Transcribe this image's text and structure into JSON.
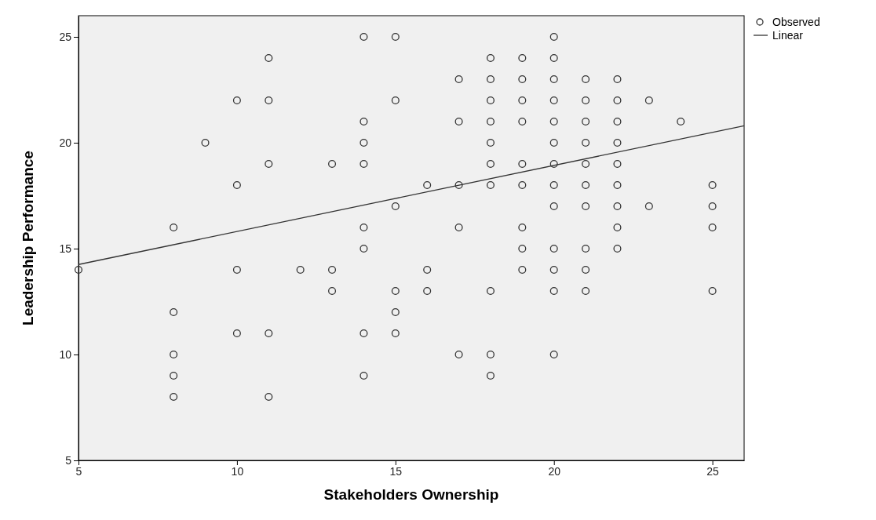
{
  "chart_data": {
    "type": "scatter",
    "xlabel": "Stakeholders Ownership",
    "ylabel": "Leadership Performance",
    "xlim": [
      5,
      26
    ],
    "ylim": [
      5,
      26
    ],
    "xticks": [
      5,
      10,
      15,
      20,
      25
    ],
    "yticks": [
      5,
      10,
      15,
      20,
      25
    ],
    "grid": false,
    "legend": "top right",
    "series": [
      {
        "name": "Observed",
        "marker": "circle",
        "color": "#333333",
        "x": [
          5,
          8,
          8,
          8,
          8,
          8,
          9,
          10,
          10,
          10,
          10,
          11,
          11,
          11,
          11,
          11,
          12,
          13,
          13,
          13,
          14,
          14,
          14,
          14,
          14,
          14,
          14,
          14,
          15,
          15,
          15,
          15,
          15,
          15,
          16,
          16,
          16,
          17,
          17,
          17,
          17,
          17,
          18,
          18,
          18,
          18,
          18,
          18,
          18,
          18,
          18,
          18,
          19,
          19,
          19,
          19,
          19,
          19,
          19,
          19,
          19,
          20,
          20,
          20,
          20,
          20,
          20,
          20,
          20,
          20,
          20,
          20,
          20,
          20,
          21,
          21,
          21,
          21,
          21,
          21,
          21,
          21,
          21,
          21,
          22,
          22,
          22,
          22,
          22,
          22,
          22,
          22,
          22,
          23,
          23,
          24,
          25,
          25,
          25,
          25
        ],
        "values": [
          14,
          16,
          12,
          10,
          9,
          8,
          20,
          22,
          18,
          14,
          11,
          24,
          22,
          19,
          11,
          8,
          14,
          19,
          14,
          13,
          25,
          21,
          20,
          19,
          16,
          15,
          11,
          9,
          25,
          22,
          17,
          13,
          12,
          11,
          18,
          14,
          13,
          23,
          21,
          18,
          16,
          10,
          24,
          23,
          22,
          21,
          20,
          19,
          18,
          13,
          10,
          9,
          24,
          23,
          22,
          21,
          19,
          18,
          16,
          15,
          14,
          25,
          24,
          23,
          22,
          21,
          20,
          19,
          18,
          17,
          15,
          14,
          13,
          10,
          23,
          22,
          21,
          20,
          19,
          18,
          17,
          15,
          14,
          13,
          23,
          22,
          21,
          20,
          19,
          18,
          17,
          16,
          15,
          22,
          17,
          21,
          18,
          17,
          16,
          13
        ]
      },
      {
        "name": "Linear",
        "type": "line",
        "marker": "none",
        "color": "#333333",
        "x": [
          5,
          26
        ],
        "values": [
          14.25,
          20.8
        ]
      }
    ]
  }
}
